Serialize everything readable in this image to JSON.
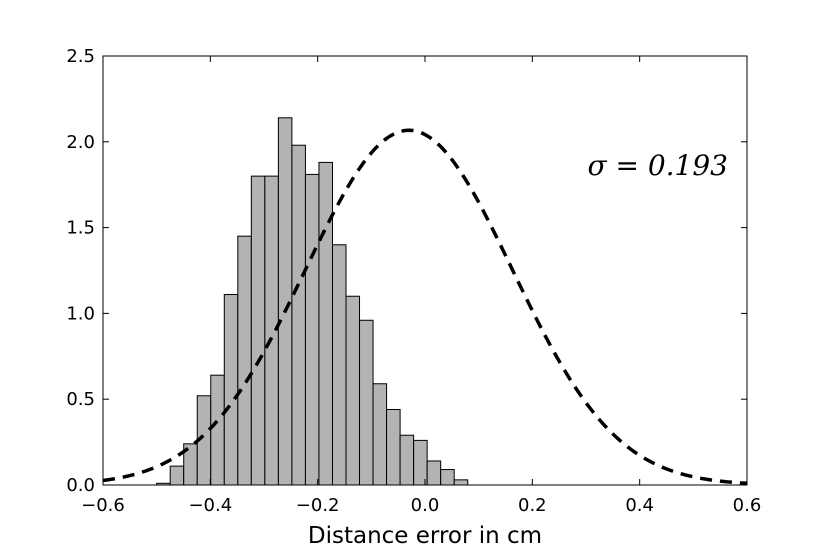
{
  "chart_data": {
    "type": "bar",
    "xlabel": "Distance error in cm",
    "ylabel": "",
    "xlim": [
      -0.6,
      0.6
    ],
    "ylim": [
      0,
      2.5
    ],
    "xticks": [
      -0.6,
      -0.4,
      -0.2,
      0.0,
      0.2,
      0.4,
      0.6
    ],
    "xtick_labels": [
      "−0.6",
      "−0.4",
      "−0.2",
      "0.0",
      "0.2",
      "0.4",
      "0.6"
    ],
    "yticks": [
      0,
      0.5,
      1.0,
      1.5,
      2.0,
      2.5
    ],
    "ytick_labels": [
      "0.0",
      "0.5",
      "1.0",
      "1.5",
      "2.0",
      "2.5"
    ],
    "grid": false,
    "bar_color": "#b3b3b3",
    "bar_edge_color": "#000000",
    "bins": [
      {
        "x0": -0.5,
        "x1": -0.4748,
        "value": 0.01
      },
      {
        "x0": -0.4748,
        "x1": -0.4496,
        "value": 0.11
      },
      {
        "x0": -0.4496,
        "x1": -0.4244,
        "value": 0.24
      },
      {
        "x0": -0.4244,
        "x1": -0.3992,
        "value": 0.52
      },
      {
        "x0": -0.3992,
        "x1": -0.374,
        "value": 0.64
      },
      {
        "x0": -0.374,
        "x1": -0.3488,
        "value": 1.11
      },
      {
        "x0": -0.3488,
        "x1": -0.3236,
        "value": 1.45
      },
      {
        "x0": -0.3236,
        "x1": -0.2984,
        "value": 1.8
      },
      {
        "x0": -0.2984,
        "x1": -0.2732,
        "value": 1.8
      },
      {
        "x0": -0.2732,
        "x1": -0.248,
        "value": 2.14
      },
      {
        "x0": -0.248,
        "x1": -0.2228,
        "value": 1.98
      },
      {
        "x0": -0.2228,
        "x1": -0.1976,
        "value": 1.81
      },
      {
        "x0": -0.1976,
        "x1": -0.1724,
        "value": 1.88
      },
      {
        "x0": -0.1724,
        "x1": -0.1472,
        "value": 1.4
      },
      {
        "x0": -0.1472,
        "x1": -0.122,
        "value": 1.1
      },
      {
        "x0": -0.122,
        "x1": -0.0968,
        "value": 0.96
      },
      {
        "x0": -0.0968,
        "x1": -0.0716,
        "value": 0.59
      },
      {
        "x0": -0.0716,
        "x1": -0.0464,
        "value": 0.44
      },
      {
        "x0": -0.0464,
        "x1": -0.0212,
        "value": 0.29
      },
      {
        "x0": -0.0212,
        "x1": 0.004,
        "value": 0.26
      },
      {
        "x0": 0.004,
        "x1": 0.0292,
        "value": 0.14
      },
      {
        "x0": 0.0292,
        "x1": 0.0544,
        "value": 0.09
      },
      {
        "x0": 0.0544,
        "x1": 0.0796,
        "value": 0.03
      }
    ],
    "fit_curve": {
      "style": "dashed",
      "color": "#000000",
      "distribution": "normal",
      "mean": -0.03,
      "sigma": 0.193
    },
    "annotation": "σ = 0.193"
  }
}
